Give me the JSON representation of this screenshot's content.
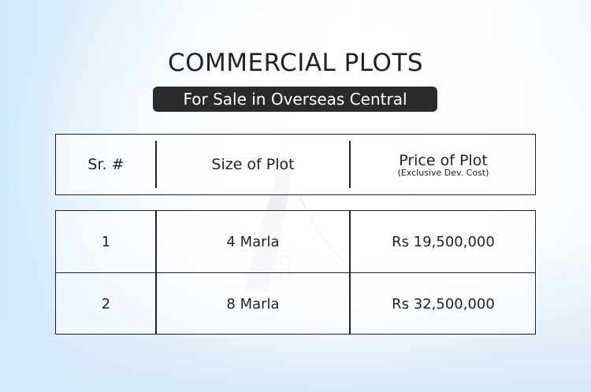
{
  "title": "COMMERCIAL PLOTS",
  "subtitle": "For Sale in Overseas Central",
  "table": {
    "headers": [
      {
        "label": "Sr. #"
      },
      {
        "label": "Size of Plot"
      },
      {
        "label": "Price of Plot",
        "note": "(Exclusive Dev. Cost)"
      }
    ],
    "rows": [
      {
        "sr": "1",
        "size": "4 Marla",
        "price": "Rs 19,500,000"
      },
      {
        "sr": "2",
        "size": "8 Marla",
        "price": "Rs 32,500,000"
      }
    ]
  },
  "colors": {
    "badge_bg": "#2b2b2b",
    "border": "#222222",
    "background_accent": "#cfe8fb"
  }
}
